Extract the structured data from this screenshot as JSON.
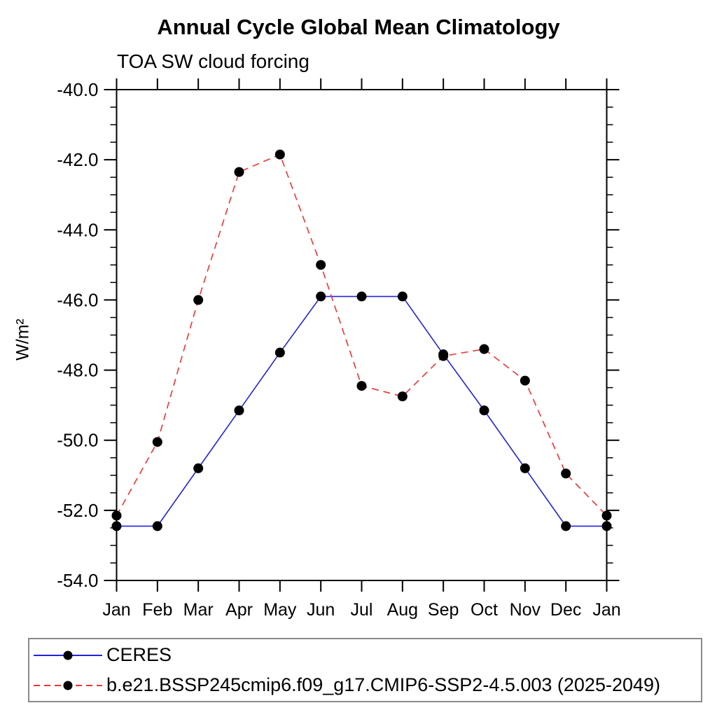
{
  "title": "Annual Cycle Global Mean Climatology",
  "subtitle": "TOA SW cloud forcing",
  "ylabel": "W/m²",
  "legend": {
    "border_color": "#898989",
    "position": "bottom-left"
  },
  "chart_data": {
    "type": "line",
    "categories": [
      "Jan",
      "Feb",
      "Mar",
      "Apr",
      "May",
      "Jun",
      "Jul",
      "Aug",
      "Sep",
      "Oct",
      "Nov",
      "Dec",
      "Jan"
    ],
    "xlabel": "",
    "ylabel": "W/m²",
    "ylim": [
      -54.0,
      -40.0
    ],
    "ytick_major_step": 2.0,
    "ytick_minor_step": 0.5,
    "ytick_labels": [
      "-40.0",
      "-42.0",
      "-44.0",
      "-46.0",
      "-48.0",
      "-50.0",
      "-52.0",
      "-54.0"
    ],
    "grid": false,
    "axis_color": "#000000",
    "marker_color": "#000000",
    "series": [
      {
        "name": "CERES",
        "color": "#2222dd",
        "line_style": "solid",
        "marker": "filled-circle",
        "values": [
          -52.45,
          -52.45,
          -50.8,
          -49.15,
          -47.5,
          -45.9,
          -45.9,
          -45.9,
          -47.55,
          -49.15,
          -50.8,
          -52.45,
          -52.45
        ]
      },
      {
        "name": "b.e21.BSSP245cmip6.f09_g17.CMIP6-SSP2-4.5.003 (2025-2049)",
        "color": "#ee3333",
        "line_style": "dashed",
        "marker": "filled-circle",
        "values": [
          -52.15,
          -50.05,
          -46.0,
          -42.35,
          -41.85,
          -45.0,
          -48.45,
          -48.75,
          -47.6,
          -47.4,
          -48.3,
          -50.95,
          -52.15
        ]
      }
    ]
  }
}
